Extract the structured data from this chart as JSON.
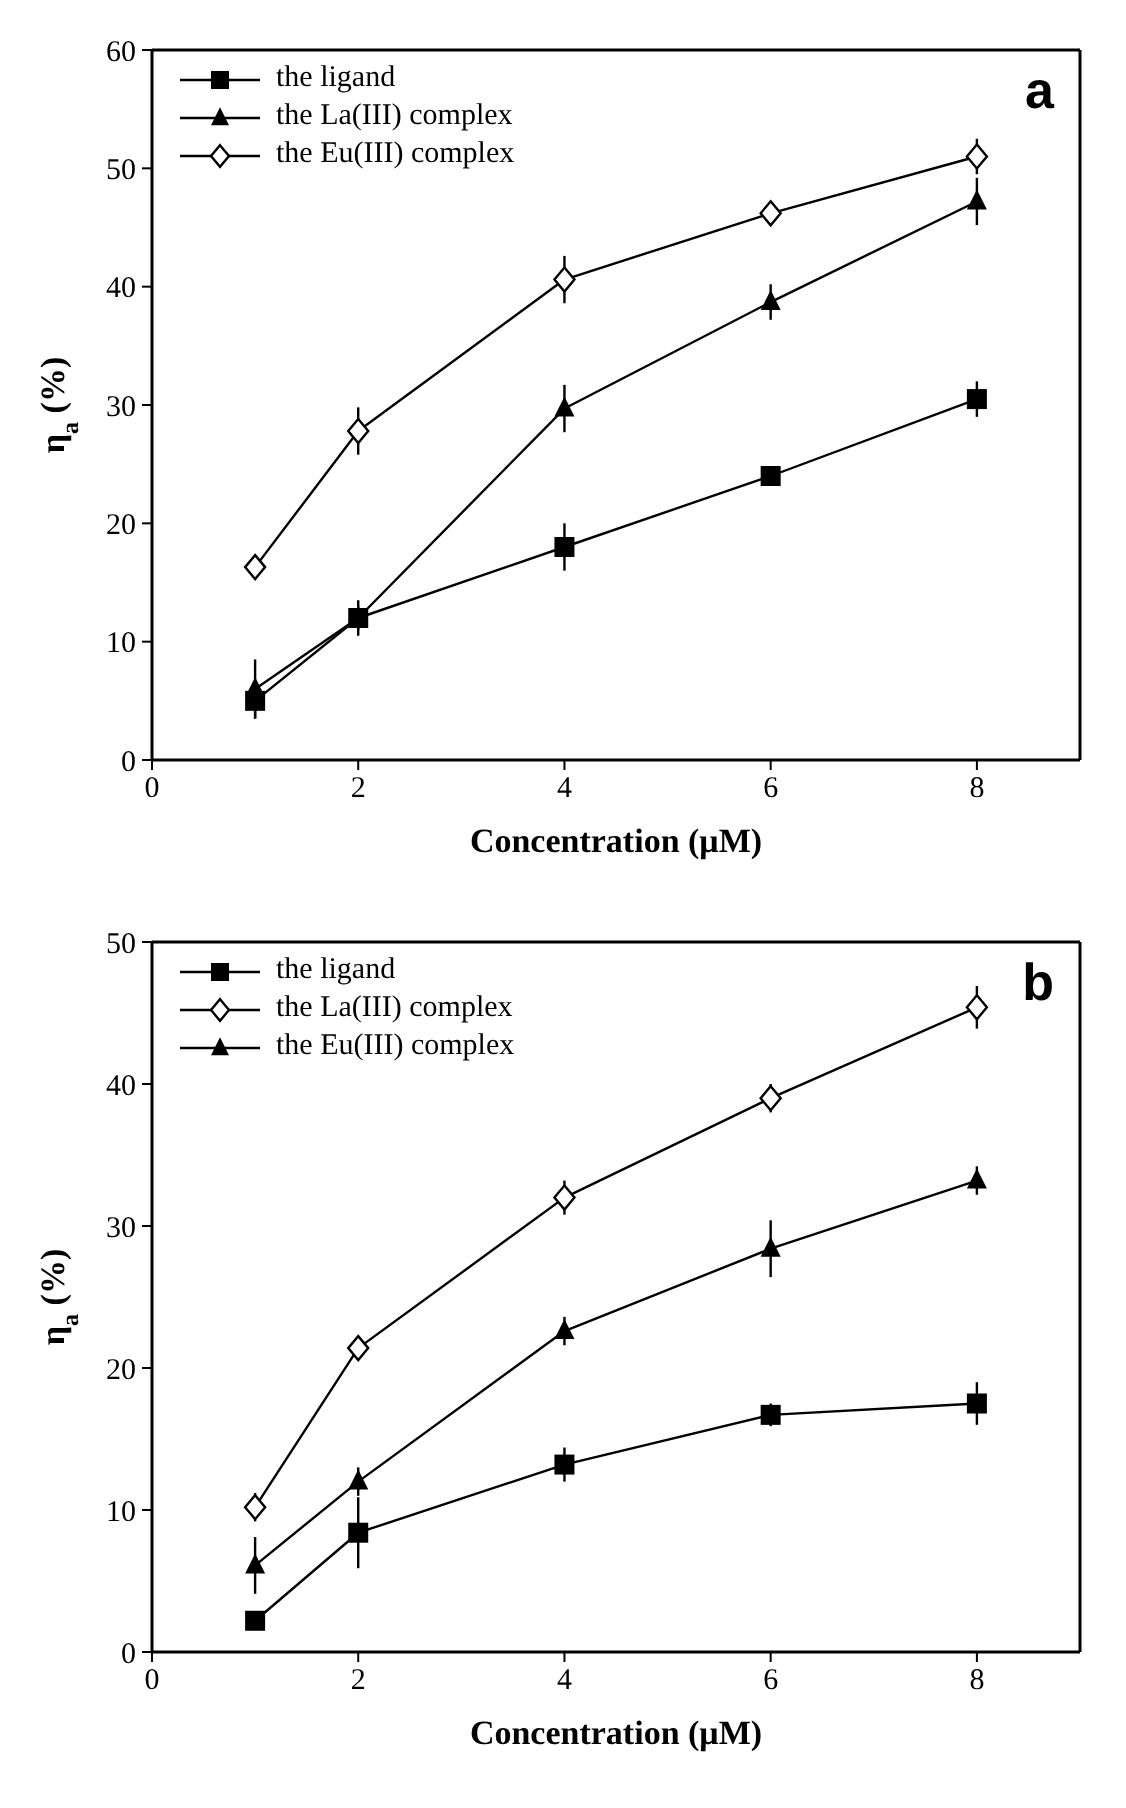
{
  "chart_data": [
    {
      "type": "line",
      "x": [
        1,
        2,
        4,
        6,
        8
      ],
      "xlabel": "Concentration (μM)",
      "ylabel": "η$_{a}$ (%)",
      "xlim": [
        0,
        9
      ],
      "xticks": [
        0,
        2,
        4,
        6,
        8
      ],
      "ylim": [
        0,
        60
      ],
      "yticks": [
        0,
        10,
        20,
        30,
        40,
        50,
        60
      ],
      "grid": false,
      "legend": "top left",
      "annotations": [
        "a"
      ],
      "series": [
        {
          "name": "the ligand",
          "color": "#000000",
          "marker": "square",
          "values": [
            5,
            12,
            18,
            24,
            30.5
          ],
          "errors": [
            1.5,
            1,
            2,
            0.5,
            1.5
          ]
        },
        {
          "name": "the La(III) complex",
          "color": "#000000",
          "marker": "triangle",
          "values": [
            6,
            12,
            29.7,
            38.7,
            47.2
          ],
          "errors": [
            2.5,
            1.5,
            2,
            1.5,
            2
          ]
        },
        {
          "name": "the Eu(III) complex",
          "color": "#000000",
          "marker": "diamond",
          "values": [
            16.3,
            27.8,
            40.6,
            46.2,
            51
          ],
          "errors": [
            0.5,
            2,
            2,
            0.5,
            1.5
          ]
        }
      ]
    },
    {
      "type": "line",
      "x": [
        1,
        2,
        4,
        6,
        8
      ],
      "xlabel": "Concentration (μM)",
      "ylabel": "η$_{a}$ (%)",
      "xlim": [
        0,
        9
      ],
      "xticks": [
        0,
        2,
        4,
        6,
        8
      ],
      "ylim": [
        0,
        50
      ],
      "yticks": [
        0,
        10,
        20,
        30,
        40,
        50
      ],
      "grid": false,
      "legend": "top left",
      "annotations": [
        "b"
      ],
      "series": [
        {
          "name": "the ligand",
          "color": "#000000",
          "marker": "square",
          "values": [
            2.2,
            8.4,
            13.2,
            16.7,
            17.5
          ],
          "errors": [
            0.5,
            2.5,
            1.2,
            0.8,
            1.5
          ]
        },
        {
          "name": "the La(III) complex",
          "color": "#000000",
          "marker": "diamond",
          "values": [
            10.2,
            21.4,
            32,
            39,
            45.4
          ],
          "errors": [
            1,
            0.5,
            1.2,
            1,
            1.5
          ]
        },
        {
          "name": "the Eu(III) complex",
          "color": "#000000",
          "marker": "triangle",
          "values": [
            6.1,
            12,
            22.6,
            28.4,
            33.2
          ],
          "errors": [
            2,
            1,
            1,
            2,
            1
          ]
        }
      ]
    }
  ]
}
